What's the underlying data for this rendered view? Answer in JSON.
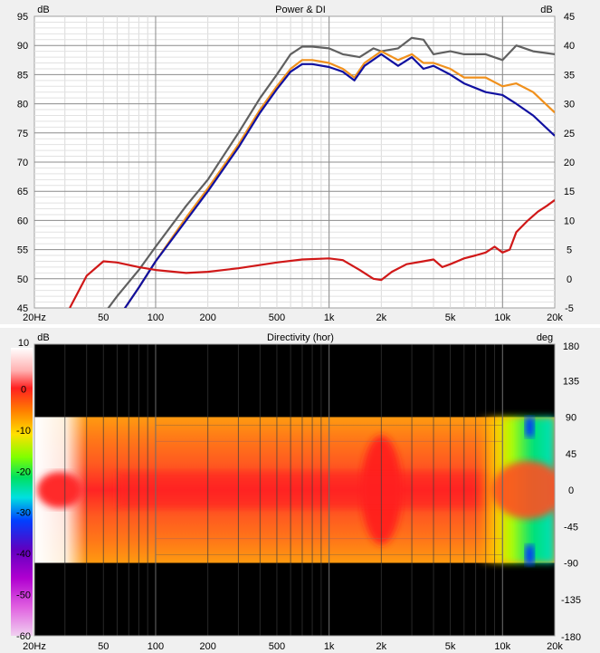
{
  "chart_data": [
    {
      "type": "line",
      "title": "Power & DI",
      "ylabel_left": "dB",
      "ylabel_right": "dB",
      "x_scale": "log",
      "xlim": [
        20,
        20000
      ],
      "ylim": [
        45,
        95
      ],
      "ylim_right": [
        -5,
        45
      ],
      "x_ticks": [
        {
          "v": 20,
          "label": "20Hz"
        },
        {
          "v": 50,
          "label": "50"
        },
        {
          "v": 100,
          "label": "100"
        },
        {
          "v": 200,
          "label": "200"
        },
        {
          "v": 500,
          "label": "500"
        },
        {
          "v": 1000,
          "label": "1k"
        },
        {
          "v": 2000,
          "label": "2k"
        },
        {
          "v": 5000,
          "label": "5k"
        },
        {
          "v": 10000,
          "label": "10k"
        },
        {
          "v": 20000,
          "label": "20k"
        }
      ],
      "y_ticks_left": [
        "95",
        "90",
        "85",
        "80",
        "75",
        "70",
        "65",
        "60",
        "55",
        "50",
        "45"
      ],
      "y_ticks_right": [
        "45",
        "40",
        "35",
        "30",
        "25",
        "20",
        "15",
        "10",
        "5",
        "0",
        "-5"
      ],
      "grid": true,
      "series": [
        {
          "color": "#606060",
          "axis": "left",
          "x": [
            40,
            60,
            80,
            100,
            150,
            200,
            300,
            400,
            500,
            600,
            700,
            800,
            1000,
            1200,
            1500,
            1800,
            2000,
            2500,
            3000,
            3500,
            4000,
            5000,
            6000,
            8000,
            10000,
            12000,
            15000,
            20000
          ],
          "y": [
            40,
            47,
            51.5,
            55.5,
            62.5,
            67,
            75,
            81,
            85,
            88.5,
            89.8,
            89.8,
            89.5,
            88.5,
            88,
            89.5,
            89,
            89.5,
            91.3,
            91,
            88.5,
            89,
            88.5,
            88.5,
            87.5,
            90,
            89,
            88.5
          ]
        },
        {
          "color": "#f0901c",
          "axis": "left",
          "x": [
            60,
            80,
            100,
            150,
            200,
            300,
            400,
            500,
            600,
            700,
            800,
            1000,
            1200,
            1400,
            1600,
            2000,
            2500,
            3000,
            3500,
            4000,
            5000,
            6000,
            8000,
            10000,
            12000,
            15000,
            20000
          ],
          "y": [
            43,
            48.5,
            53,
            60.5,
            65.5,
            73,
            79,
            83,
            86,
            87.5,
            87.5,
            87,
            86,
            84.5,
            87,
            89,
            87.5,
            88.5,
            87,
            87,
            86,
            84.5,
            84.5,
            83,
            83.5,
            82,
            78.5
          ]
        },
        {
          "color": "#1010a0",
          "axis": "left",
          "x": [
            60,
            80,
            100,
            150,
            200,
            300,
            400,
            500,
            600,
            700,
            800,
            1000,
            1200,
            1400,
            1600,
            2000,
            2500,
            3000,
            3500,
            4000,
            5000,
            6000,
            8000,
            10000,
            12000,
            15000,
            20000
          ],
          "y": [
            43,
            48.5,
            53,
            60,
            65,
            72.5,
            78.5,
            82.5,
            85.5,
            86.8,
            86.8,
            86.3,
            85.5,
            84,
            86.5,
            88.5,
            86.5,
            88,
            86,
            86.5,
            85,
            83.5,
            82,
            81.5,
            80,
            78,
            74.5
          ]
        },
        {
          "color": "#d01818",
          "axis": "right",
          "x": [
            32,
            40,
            50,
            60,
            80,
            100,
            150,
            200,
            300,
            500,
            700,
            1000,
            1200,
            1500,
            1800,
            2000,
            2300,
            2800,
            3500,
            4000,
            4500,
            5000,
            6000,
            7000,
            8000,
            9000,
            10000,
            11000,
            12000,
            14000,
            16000,
            18000,
            20000
          ],
          "y": [
            -5,
            0.5,
            3,
            2.8,
            2,
            1.5,
            1,
            1.2,
            1.8,
            2.8,
            3.3,
            3.5,
            3.2,
            1.5,
            0,
            -0.2,
            1.2,
            2.5,
            3,
            3.3,
            2,
            2.5,
            3.5,
            4,
            4.5,
            5.5,
            4.5,
            5,
            8,
            10,
            11.5,
            12.5,
            13.5
          ]
        }
      ]
    },
    {
      "type": "heatmap",
      "title": "Directivity (hor)",
      "ylabel_left": "dB",
      "ylabel_right": "deg",
      "x_scale": "log",
      "xlim": [
        20,
        20000
      ],
      "ylim": [
        -180,
        180
      ],
      "x_ticks": [
        {
          "v": 20,
          "label": "20Hz"
        },
        {
          "v": 50,
          "label": "50"
        },
        {
          "v": 100,
          "label": "100"
        },
        {
          "v": 200,
          "label": "200"
        },
        {
          "v": 500,
          "label": "500"
        },
        {
          "v": 1000,
          "label": "1k"
        },
        {
          "v": 2000,
          "label": "2k"
        },
        {
          "v": 5000,
          "label": "5k"
        },
        {
          "v": 10000,
          "label": "10k"
        },
        {
          "v": 20000,
          "label": "20k"
        }
      ],
      "y_ticks_right": [
        "180",
        "135",
        "90",
        "45",
        "0",
        "-45",
        "-90",
        "-135",
        "-180"
      ],
      "colorbar_ticks": [
        "10",
        "0",
        "-10",
        "-20",
        "-30",
        "-40",
        "-50",
        "-60"
      ],
      "colorbar_range": [
        -60,
        10
      ]
    }
  ]
}
